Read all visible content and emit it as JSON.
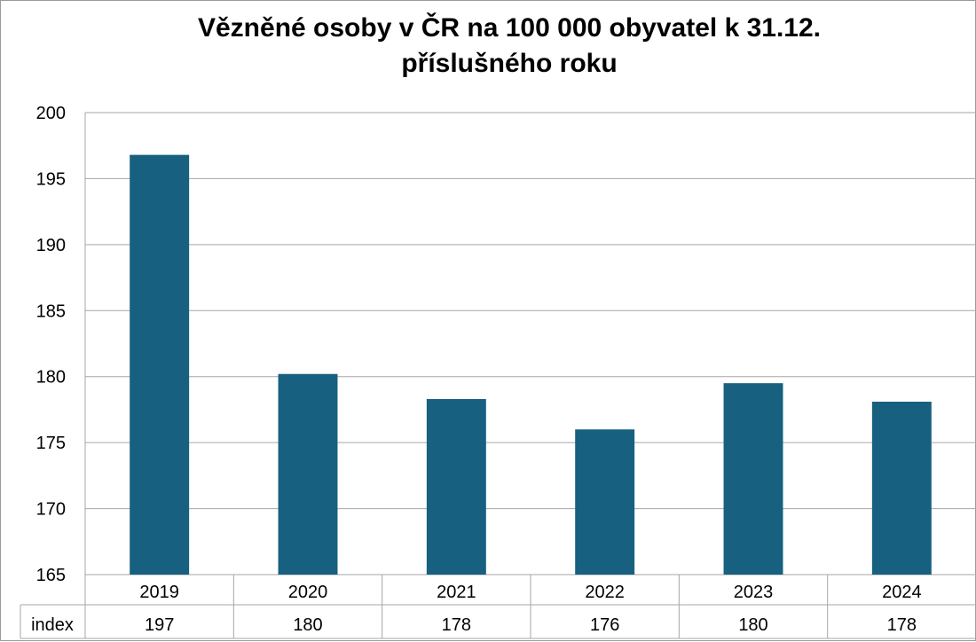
{
  "chart_data": {
    "type": "bar",
    "title": "Vězněné osoby v ČR na 100 000 obyvatel k 31.12.",
    "title_line2": "příslušného roku",
    "categories": [
      "2019",
      "2020",
      "2021",
      "2022",
      "2023",
      "2024"
    ],
    "values": [
      196.8,
      180.2,
      178.3,
      176.0,
      179.5,
      178.1
    ],
    "ylim": [
      165,
      200
    ],
    "yticks": [
      165,
      170,
      175,
      180,
      185,
      190,
      195,
      200
    ],
    "grid": true,
    "bar_color": "#17607F",
    "table": {
      "row_label": "index",
      "values": [
        "197",
        "180",
        "178",
        "176",
        "180",
        "178"
      ]
    }
  }
}
